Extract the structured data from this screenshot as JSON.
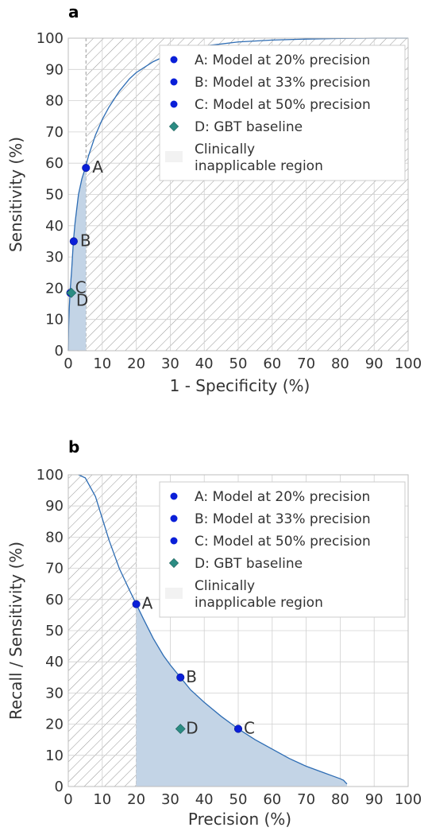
{
  "figure": {
    "panel_labels": [
      "a",
      "b"
    ]
  },
  "colors": {
    "curve": "#2e6db4",
    "fill": "#c3d4e6",
    "point": "#0a1fd8",
    "baseline": "#2b8c83",
    "grid": "#d0d0d0",
    "hatch": "#8a8a8a"
  },
  "chart_data": [
    {
      "type": "line",
      "panel": "a",
      "xlabel": "1 - Specificity (%)",
      "ylabel": "Sensitivity (%)",
      "xlim": [
        0,
        100
      ],
      "ylim": [
        0,
        100
      ],
      "xticks": [
        "0",
        "10",
        "20",
        "30",
        "40",
        "50",
        "60",
        "70",
        "80",
        "90",
        "100"
      ],
      "yticks": [
        "0",
        "10",
        "20",
        "30",
        "40",
        "50",
        "60",
        "70",
        "80",
        "90",
        "100"
      ],
      "grid": true,
      "legend_position": "top-right",
      "curve": {
        "x": [
          0,
          0.1,
          0.3,
          0.6,
          1.0,
          1.5,
          2.0,
          3.0,
          4.0,
          5.0,
          6.0,
          8.0,
          10,
          12,
          15,
          18,
          20,
          25,
          30,
          35,
          40,
          50,
          60,
          70,
          80,
          90,
          100
        ],
        "y": [
          0,
          8,
          14,
          20,
          26,
          35,
          41,
          50,
          55,
          58.5,
          62.5,
          69,
          74,
          78,
          83,
          87,
          89,
          92.5,
          95,
          96.5,
          97.5,
          98.8,
          99.4,
          99.7,
          99.9,
          100,
          100
        ]
      },
      "shaded_region": {
        "x_from": 0,
        "x_to": 5.2
      },
      "hatched_region": {
        "x_from": 5.2,
        "x_to": 100
      },
      "points": [
        {
          "label": "A",
          "x": 5.2,
          "y": 58.5,
          "marker": "circle"
        },
        {
          "label": "B",
          "x": 1.6,
          "y": 35,
          "marker": "circle"
        },
        {
          "label": "C",
          "x": 0.6,
          "y": 18.5,
          "marker": "circle"
        },
        {
          "label": "D",
          "x": 0.9,
          "y": 18.5,
          "marker": "diamond"
        }
      ],
      "legend": [
        {
          "marker": "circle",
          "text": "A: Model at 20% precision"
        },
        {
          "marker": "circle",
          "text": "B: Model at 33% precision"
        },
        {
          "marker": "circle",
          "text": "C: Model at 50% precision"
        },
        {
          "marker": "diamond",
          "text": "D: GBT baseline"
        },
        {
          "marker": "hatch",
          "text": "Clinically\ninapplicable region"
        }
      ]
    },
    {
      "type": "line",
      "panel": "b",
      "xlabel": "Precision (%)",
      "ylabel": "Recall / Sensitivity (%)",
      "xlim": [
        0,
        100
      ],
      "ylim": [
        0,
        100
      ],
      "xticks": [
        "0",
        "10",
        "20",
        "30",
        "40",
        "50",
        "60",
        "70",
        "80",
        "90",
        "100"
      ],
      "yticks": [
        "0",
        "10",
        "20",
        "30",
        "40",
        "50",
        "60",
        "70",
        "80",
        "90",
        "100"
      ],
      "grid": true,
      "legend_position": "top-right",
      "curve": {
        "x": [
          3,
          5,
          8,
          10,
          12,
          15,
          18,
          20,
          22,
          25,
          28,
          30,
          33,
          36,
          40,
          45,
          50,
          55,
          60,
          65,
          70,
          75,
          78,
          80,
          81,
          81.5,
          82
        ],
        "y": [
          100,
          99,
          93,
          86,
          79,
          70,
          63,
          58.5,
          54,
          47.5,
          42,
          39,
          35,
          31,
          27,
          22.5,
          18.5,
          15,
          12,
          9,
          6.5,
          4.5,
          3.3,
          2.5,
          2,
          1.4,
          0.8
        ]
      },
      "shaded_region": {
        "x_from": 20,
        "x_to": 82
      },
      "hatched_region": {
        "x_from": 0,
        "x_to": 20
      },
      "points": [
        {
          "label": "A",
          "x": 20,
          "y": 58.5,
          "marker": "circle"
        },
        {
          "label": "B",
          "x": 33,
          "y": 35,
          "marker": "circle"
        },
        {
          "label": "C",
          "x": 50,
          "y": 18.5,
          "marker": "circle"
        },
        {
          "label": "D",
          "x": 33,
          "y": 18.5,
          "marker": "diamond"
        }
      ],
      "legend": [
        {
          "marker": "circle",
          "text": "A: Model at 20% precision"
        },
        {
          "marker": "circle",
          "text": "B: Model at 33% precision"
        },
        {
          "marker": "circle",
          "text": "C: Model at 50% precision"
        },
        {
          "marker": "diamond",
          "text": "D: GBT baseline"
        },
        {
          "marker": "hatch",
          "text": "Clinically\ninapplicable region"
        }
      ]
    }
  ]
}
